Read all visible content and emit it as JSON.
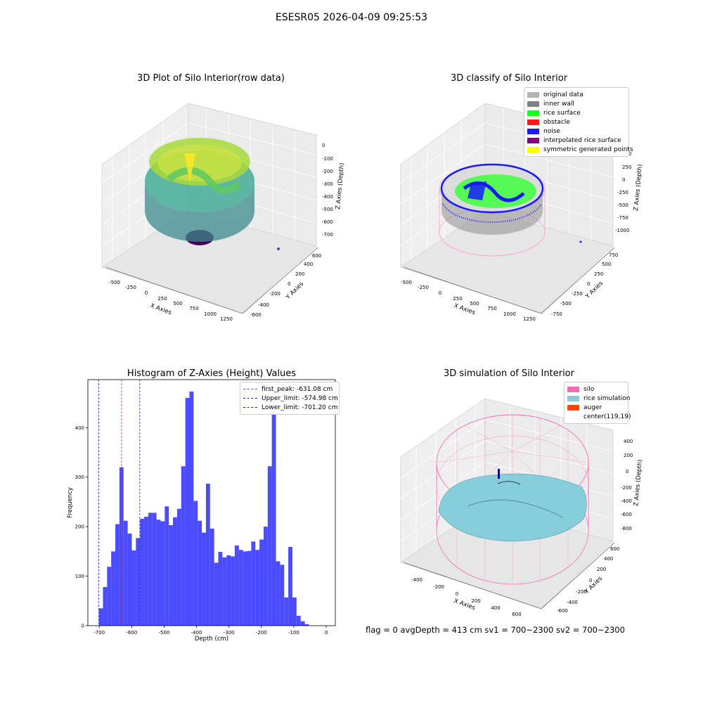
{
  "figure": {
    "title": "ESESR05 2026-04-09 09:25:53",
    "status_line": "flag = 0     avgDepth = 413 cm  sv1 = 700~2300  sv2 = 700~2300"
  },
  "colors": {
    "histogram_bar": "#4b4bff",
    "first_peak_line": "#e32727",
    "limit_lines": "#2020c8",
    "viridis": [
      "#440154",
      "#3b528b",
      "#21918c",
      "#5ec962",
      "#fde725"
    ]
  },
  "chart_data": [
    {
      "type": "scatter",
      "title": "3D Plot of Silo Interior(row data)",
      "projection": "3d",
      "xlabel": "X Axies",
      "ylabel": "Y Axies",
      "zlabel": "Z Axies (Depth)",
      "x_ticks": [
        "-500",
        "-250",
        "0",
        "250",
        "500",
        "750",
        "1000",
        "1250"
      ],
      "y_ticks": [
        "-600",
        "-400",
        "-200",
        "0",
        "200",
        "400",
        "600"
      ],
      "z_ticks": [
        "0",
        "-100",
        "-200",
        "-300",
        "-400",
        "-500",
        "-600",
        "-700"
      ],
      "colormap": "viridis"
    },
    {
      "type": "scatter",
      "title": "3D classify of Silo Interior",
      "projection": "3d",
      "xlabel": "X Axies",
      "ylabel": "Y Axies",
      "zlabel": "Z Axies (Depth)",
      "x_ticks": [
        "-500",
        "-250",
        "0",
        "250",
        "500",
        "750",
        "1000",
        "1250"
      ],
      "y_ticks": [
        "-750",
        "-500",
        "-250",
        "0",
        "250",
        "500",
        "750"
      ],
      "z_ticks": [
        "500",
        "250",
        "0",
        "-250",
        "-500",
        "-750",
        "-1000"
      ],
      "legend": [
        {
          "label": "original data",
          "color": "#b3b3b3"
        },
        {
          "label": "inner wall",
          "color": "#808080"
        },
        {
          "label": "rice surface",
          "color": "#1aff1a"
        },
        {
          "label": "obstacle",
          "color": "#ff1a1a"
        },
        {
          "label": "noise",
          "color": "#1a1aff"
        },
        {
          "label": "interpolated rice surface",
          "color": "#800080"
        },
        {
          "label": "symmetric generated points",
          "color": "#ffff00"
        }
      ]
    },
    {
      "type": "bar",
      "title": "Histogram of Z-Axies (Height) Values",
      "xlabel": "Depth (cm)",
      "ylabel": "Frequency",
      "xlim": [
        -735,
        28
      ],
      "ylim": [
        0,
        497
      ],
      "bin_width": 12.7,
      "x_ticks": [
        -700,
        -600,
        -500,
        -400,
        -300,
        -200,
        -100,
        0
      ],
      "y_ticks": [
        0,
        100,
        200,
        300,
        400
      ],
      "bins": [
        [
          -701.2,
          35
        ],
        [
          -688.5,
          78
        ],
        [
          -675.8,
          119
        ],
        [
          -663.1,
          150
        ],
        [
          -650.4,
          205
        ],
        [
          -637.7,
          320
        ],
        [
          -625.0,
          212
        ],
        [
          -612.3,
          186
        ],
        [
          -599.6,
          152
        ],
        [
          -586.9,
          177
        ],
        [
          -574.2,
          216
        ],
        [
          -561.5,
          220
        ],
        [
          -548.8,
          228
        ],
        [
          -536.1,
          228
        ],
        [
          -523.4,
          214
        ],
        [
          -510.7,
          211
        ],
        [
          -498.0,
          241
        ],
        [
          -485.3,
          203
        ],
        [
          -472.6,
          219
        ],
        [
          -459.9,
          236
        ],
        [
          -447.2,
          322
        ],
        [
          -434.5,
          460
        ],
        [
          -421.8,
          473
        ],
        [
          -409.1,
          252
        ],
        [
          -396.4,
          212
        ],
        [
          -383.7,
          188
        ],
        [
          -371.0,
          287
        ],
        [
          -358.3,
          196
        ],
        [
          -345.6,
          127
        ],
        [
          -332.9,
          149
        ],
        [
          -320.2,
          138
        ],
        [
          -307.5,
          142
        ],
        [
          -294.8,
          140
        ],
        [
          -282.1,
          162
        ],
        [
          -269.4,
          153
        ],
        [
          -256.7,
          150
        ],
        [
          -244.0,
          151
        ],
        [
          -231.3,
          170
        ],
        [
          -218.6,
          153
        ],
        [
          -205.9,
          174
        ],
        [
          -193.2,
          200
        ],
        [
          -180.5,
          322
        ],
        [
          -167.8,
          433
        ],
        [
          -155.1,
          130
        ],
        [
          -142.4,
          123
        ],
        [
          -129.7,
          57
        ],
        [
          -117.0,
          159
        ],
        [
          -104.3,
          57
        ],
        [
          -91.6,
          20
        ],
        [
          -78.9,
          9
        ],
        [
          -66.2,
          3
        ]
      ],
      "vlines": [
        {
          "label": "first_peak: -631.08 cm",
          "x": -631.08,
          "color": "#e32727"
        },
        {
          "label": "Upper_limit: -574.98 cm",
          "x": -574.98,
          "color": "#2020c8"
        },
        {
          "label": "Lower_limit: -701.20 cm",
          "x": -701.2,
          "color": "#2020c8"
        }
      ]
    },
    {
      "type": "area",
      "title": "3D simulation of Silo Interior",
      "projection": "3d",
      "xlabel": "X Axies",
      "ylabel": "Y Axies",
      "zlabel": "Z Axies (Depth)",
      "x_ticks": [
        "-400",
        "-200",
        "0",
        "200",
        "400",
        "600"
      ],
      "y_ticks": [
        "-600",
        "-400",
        "-200",
        "0",
        "200",
        "400",
        "600"
      ],
      "z_ticks": [
        "400",
        "200",
        "0",
        "-200",
        "-400",
        "-600",
        "-800"
      ],
      "legend": [
        {
          "label": "silo",
          "color": "#ff69b4"
        },
        {
          "label": "rice simulation",
          "color": "#87cedc"
        },
        {
          "label": "auger",
          "color": "#ff4500"
        },
        {
          "label": "center(119,19)",
          "color": ""
        }
      ]
    }
  ]
}
